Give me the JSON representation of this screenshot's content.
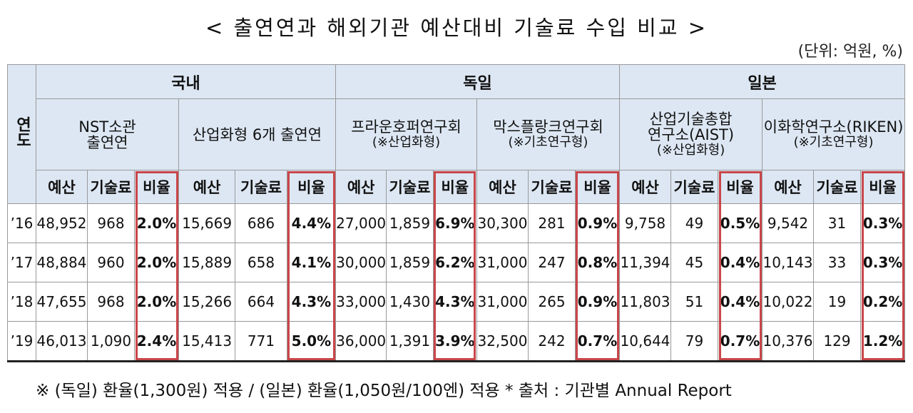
{
  "title": "< 출연연과 해외기관 예산대비 기술료 수입 비교 >",
  "unit": "(단위: 억원, %)",
  "table": {
    "year_header": "연도",
    "columns": [
      "예산",
      "기술료",
      "비율"
    ],
    "regions": [
      {
        "name": "국내",
        "groups": [
          {
            "name": [
              "NST소관",
              "출연연"
            ]
          },
          {
            "name": [
              "산업화형 6개 출연연"
            ]
          }
        ]
      },
      {
        "name": "독일",
        "groups": [
          {
            "name": [
              "프라운호퍼연구회",
              "(※산업화형)"
            ]
          },
          {
            "name": [
              "막스플랑크연구회",
              "(※기초연구형)"
            ]
          }
        ]
      },
      {
        "name": "일본",
        "groups": [
          {
            "name": [
              "산업기술총합",
              "연구소(AIST)",
              "(※산업화형)"
            ]
          },
          {
            "name": [
              "이화학연구소(RIKEN)",
              "(※기초연구형)"
            ]
          }
        ]
      }
    ],
    "rows": [
      {
        "year": "’16",
        "cells": [
          "48,952",
          "968",
          "2.0%",
          "15,669",
          "686",
          "4.4%",
          "27,000",
          "1,859",
          "6.9%",
          "30,300",
          "281",
          "0.9%",
          "9,758",
          "49",
          "0.5%",
          "9,542",
          "31",
          "0.3%"
        ]
      },
      {
        "year": "’17",
        "cells": [
          "48,884",
          "960",
          "2.0%",
          "15,889",
          "658",
          "4.1%",
          "30,000",
          "1,859",
          "6.2%",
          "31,000",
          "247",
          "0.8%",
          "11,394",
          "45",
          "0.4%",
          "10,143",
          "33",
          "0.3%"
        ]
      },
      {
        "year": "’18",
        "cells": [
          "47,655",
          "968",
          "2.0%",
          "15,266",
          "664",
          "4.3%",
          "33,000",
          "1,430",
          "4.3%",
          "31,000",
          "265",
          "0.9%",
          "11,803",
          "51",
          "0.4%",
          "10,022",
          "19",
          "0.2%"
        ]
      },
      {
        "year": "’19",
        "cells": [
          "46,013",
          "1,090",
          "2.4%",
          "15,413",
          "771",
          "5.0%",
          "36,000",
          "1,391",
          "3.9%",
          "32,500",
          "242",
          "0.7%",
          "10,644",
          "79",
          "0.7%",
          "10,376",
          "129",
          "1.2%"
        ]
      }
    ]
  },
  "footnote": "※ (독일) 환율(1,300원) 적용 / (일본) 환율(1,050원/100엔) 적용 * 출처 : 기관별 Annual Report"
}
